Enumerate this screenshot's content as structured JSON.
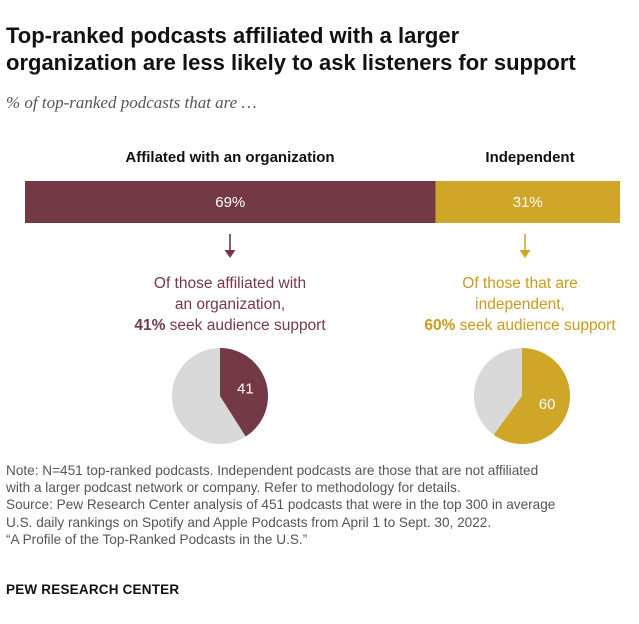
{
  "title_line1": "Top-ranked podcasts affiliated with a larger",
  "title_line2": "organization are less likely to ask listeners for support",
  "subtitle": "% of top-ranked podcasts that are …",
  "colors": {
    "affiliated": "#733a46",
    "independent": "#d0a629",
    "remainder": "#d9d9d9"
  },
  "chart_data": [
    {
      "type": "bar",
      "orientation": "horizontal-stacked",
      "categories": [
        "Affilated with an organization",
        "Independent"
      ],
      "values": [
        69,
        31
      ],
      "labels": [
        "69%",
        "31%"
      ],
      "headers": [
        "Affilated with an organization",
        "Independent"
      ]
    },
    {
      "type": "pie",
      "group": "Affilated with an organization",
      "caption_lines": [
        "Of those affiliated with",
        "an organization,"
      ],
      "caption_bold": "41%",
      "caption_rest": " seek audience support",
      "slices": [
        {
          "name": "seek audience support",
          "value": 41,
          "label": "41"
        },
        {
          "name": "other",
          "value": 59
        }
      ]
    },
    {
      "type": "pie",
      "group": "Independent",
      "caption_lines": [
        "Of those that are",
        "independent,"
      ],
      "caption_bold": "60%",
      "caption_rest": " seek audience support",
      "slices": [
        {
          "name": "seek audience support",
          "value": 60,
          "label": "60"
        },
        {
          "name": "other",
          "value": 40
        }
      ]
    }
  ],
  "notes": [
    "Note: N=451 top-ranked podcasts. Independent podcasts are those that are not affiliated",
    "with a larger podcast network or company. Refer to methodology for details.",
    "Source: Pew Research Center analysis of 451 podcasts that were in the top 300 in average",
    "U.S. daily rankings on Spotify and Apple Podcasts from April 1 to Sept. 30, 2022.",
    "“A Profile of the Top-Ranked Podcasts in the U.S.”"
  ],
  "brand": "PEW RESEARCH CENTER"
}
